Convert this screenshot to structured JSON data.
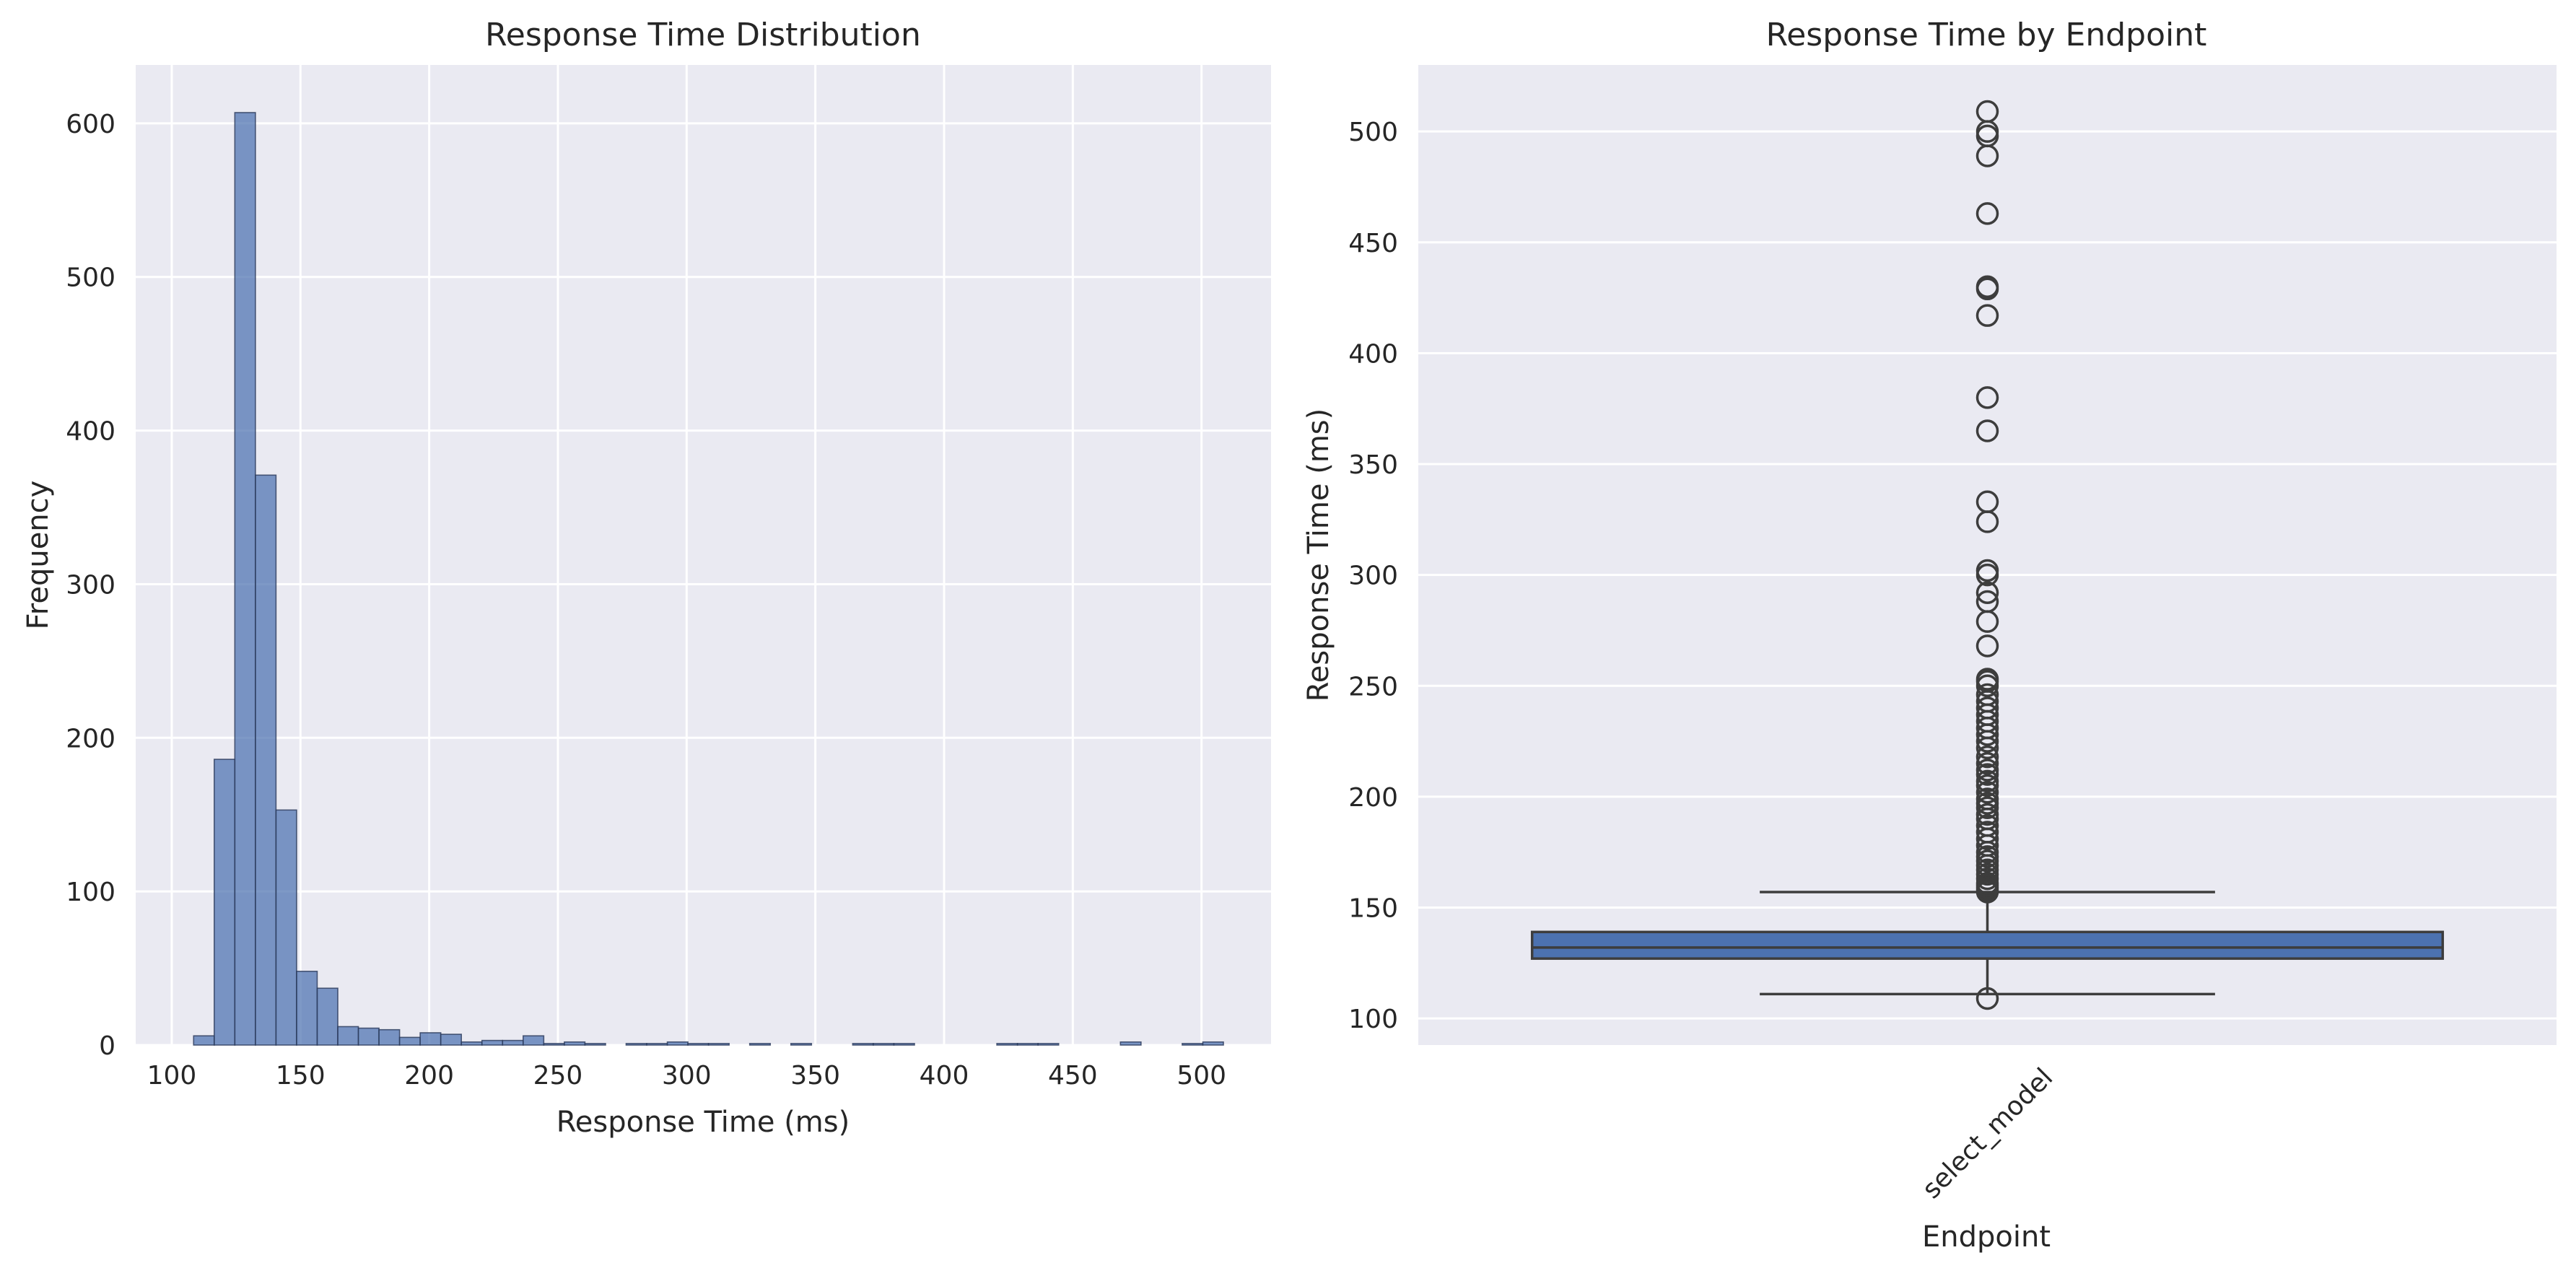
{
  "chart_data": [
    {
      "type": "bar",
      "title": "Response Time Distribution",
      "xlabel": "Response Time (ms)",
      "ylabel": "Frequency",
      "xlim": [
        86,
        527
      ],
      "ylim": [
        0,
        638
      ],
      "x_ticks": [
        100,
        150,
        200,
        250,
        300,
        350,
        400,
        450,
        500
      ],
      "y_ticks": [
        0,
        100,
        200,
        300,
        400,
        500,
        600
      ],
      "grid": true,
      "bin_edges": [
        108.5,
        116.5,
        124.5,
        132.5,
        140.5,
        148.5,
        156.5,
        164.5,
        172.5,
        180.5,
        188.5,
        196.5,
        204.5,
        212.5,
        220.5,
        228.5,
        236.5,
        244.5,
        252.5,
        260.5,
        268.5,
        276.5,
        284.5,
        292.5,
        300.5,
        308.5,
        316.5,
        324.5,
        332.5,
        340.5,
        348.5,
        356.5,
        364.5,
        372.5,
        380.5,
        388.5,
        396.5,
        404.5,
        412.5,
        420.5,
        428.5,
        436.5,
        444.5,
        452.5,
        460.5,
        468.5,
        476.5,
        484.5,
        492.5,
        500.5,
        508.5
      ],
      "values": [
        6,
        186,
        607,
        371,
        153,
        48,
        37,
        12,
        11,
        10,
        5,
        8,
        7,
        2,
        3,
        3,
        6,
        1,
        2,
        1,
        0,
        1,
        1,
        2,
        1,
        1,
        0,
        1,
        0,
        1,
        0,
        0,
        1,
        1,
        1,
        0,
        0,
        0,
        0,
        1,
        1,
        1,
        0,
        0,
        0,
        2,
        0,
        0,
        1,
        2,
        1
      ]
    },
    {
      "type": "box",
      "title": "Response Time by Endpoint",
      "xlabel": "Endpoint",
      "ylabel": "Response Time (ms)",
      "categories": [
        "select_model"
      ],
      "ylim": [
        88,
        530
      ],
      "y_ticks": [
        100,
        150,
        200,
        250,
        300,
        350,
        400,
        450,
        500
      ],
      "grid": true,
      "box": {
        "q1": 127,
        "median": 132,
        "q3": 139,
        "whisker_low": 111,
        "whisker_high": 157
      },
      "outliers": [
        109,
        157,
        158,
        159,
        160,
        161,
        163,
        165,
        167,
        169,
        171,
        173,
        175,
        178,
        181,
        184,
        187,
        190,
        192,
        195,
        197,
        199,
        202,
        205,
        207,
        210,
        212,
        215,
        218,
        222,
        225,
        228,
        231,
        234,
        237,
        240,
        243,
        246,
        250,
        252,
        253,
        268,
        279,
        288,
        292,
        300,
        302,
        324,
        333,
        365,
        380,
        417,
        429,
        430,
        463,
        489,
        498,
        500,
        509
      ]
    }
  ],
  "colors": {
    "axes_bg": "#eaeaf2",
    "grid": "#ffffff",
    "hist_fill": "#4c72b0",
    "hist_edge": "#2a3a5a",
    "box_fill": "#4c72b0",
    "line": "#3d3d3d"
  }
}
